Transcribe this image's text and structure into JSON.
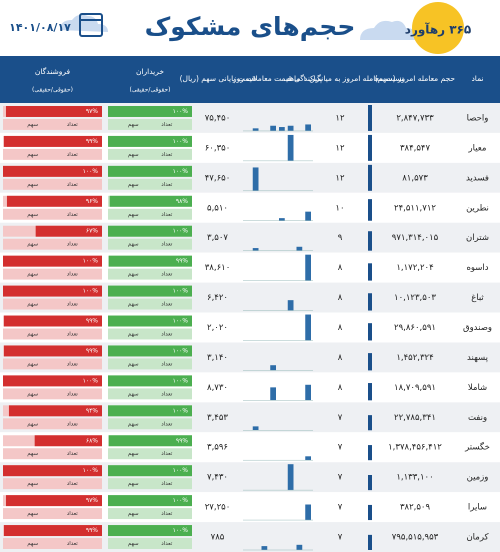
{
  "header": {
    "title": "حجم‌های مشکوک",
    "date": "۱۴۰۱/۰۸/۱۷",
    "logo": "۳۶۵ رهآورد"
  },
  "columns": [
    "نماد",
    "حجم معامله امروز (سهم)",
    "نسبت معامله امروز به میانگین ۱ ماهه",
    "پراکندگی قیمت معاملات روز",
    "قیمت پایانی سهم (ریال)",
    "خریداران",
    "فروشندگان"
  ],
  "sub_label": "(حقوقی/حقیقی)",
  "cell_labels": [
    "تعداد",
    "سهم"
  ],
  "rows": [
    {
      "symbol": "واحصا",
      "volume": "۲,۸۴۷,۷۳۳",
      "ratio": 12,
      "ratio_label": "۱۲",
      "price": "۷۵,۴۵۰",
      "dispersion": [
        0,
        10,
        0,
        20,
        15,
        20,
        0,
        25
      ],
      "buyers": 100,
      "buyers_label": "۱۰۰%",
      "sellers": 97,
      "sellers_label": "۹۷%"
    },
    {
      "symbol": "معیار",
      "volume": "۳۸۴,۵۴۷",
      "ratio": 12,
      "ratio_label": "۱۲",
      "price": "۶۰,۳۵۰",
      "dispersion": [
        0,
        0,
        0,
        0,
        0,
        100,
        0,
        0
      ],
      "buyers": 100,
      "buyers_label": "۱۰۰%",
      "sellers": 99,
      "sellers_label": "۹۹%"
    },
    {
      "symbol": "فسدید",
      "volume": "۸۱,۵۷۳",
      "ratio": 12,
      "ratio_label": "۱۲",
      "price": "۴۷,۶۵۰",
      "dispersion": [
        0,
        90,
        0,
        0,
        0,
        0,
        0,
        0
      ],
      "buyers": 100,
      "buyers_label": "۱۰۰%",
      "sellers": 100,
      "sellers_label": "۱۰۰%"
    },
    {
      "symbol": "نطرین",
      "volume": "۲۴,۵۱۱,۷۱۲",
      "ratio": 10,
      "ratio_label": "۱۰",
      "price": "۵,۵۱۰",
      "dispersion": [
        0,
        0,
        0,
        0,
        10,
        0,
        0,
        35
      ],
      "buyers": 98,
      "buyers_label": "۹۸%",
      "sellers": 96,
      "sellers_label": "۹۶%"
    },
    {
      "symbol": "شتران",
      "volume": "۹۷۱,۳۱۴,۰۱۵",
      "ratio": 9,
      "ratio_label": "۹",
      "price": "۳,۵۰۷",
      "dispersion": [
        0,
        10,
        0,
        0,
        0,
        0,
        15,
        0
      ],
      "buyers": 100,
      "buyers_label": "۱۰۰%",
      "sellers": 67,
      "sellers_label": "۶۷%"
    },
    {
      "symbol": "داسوه",
      "volume": "۱,۱۷۲,۲۰۴",
      "ratio": 8,
      "ratio_label": "۸",
      "price": "۳۸,۶۱۰",
      "dispersion": [
        0,
        0,
        0,
        0,
        0,
        0,
        0,
        100
      ],
      "buyers": 99,
      "buyers_label": "۹۹%",
      "sellers": 100,
      "sellers_label": "۱۰۰%"
    },
    {
      "symbol": "ثباغ",
      "volume": "۱۰,۱۲۳,۵۰۳",
      "ratio": 8,
      "ratio_label": "۸",
      "price": "۶,۴۲۰",
      "dispersion": [
        0,
        0,
        0,
        0,
        0,
        40,
        0,
        0
      ],
      "buyers": 100,
      "buyers_label": "۱۰۰%",
      "sellers": 100,
      "sellers_label": "۱۰۰%"
    },
    {
      "symbol": "وصندوق",
      "volume": "۲۹,۸۶۰,۵۹۱",
      "ratio": 8,
      "ratio_label": "۸",
      "price": "۲,۰۲۰",
      "dispersion": [
        0,
        0,
        0,
        0,
        0,
        0,
        0,
        100
      ],
      "buyers": 100,
      "buyers_label": "۱۰۰%",
      "sellers": 99,
      "sellers_label": "۹۹%"
    },
    {
      "symbol": "پسهند",
      "volume": "۱,۴۵۲,۳۲۴",
      "ratio": 8,
      "ratio_label": "۸",
      "price": "۳,۱۴۰",
      "dispersion": [
        0,
        0,
        0,
        20,
        0,
        0,
        0,
        0
      ],
      "buyers": 100,
      "buyers_label": "۱۰۰%",
      "sellers": 99,
      "sellers_label": "۹۹%"
    },
    {
      "symbol": "شاملا",
      "volume": "۱۸,۷۰۹,۵۹۱",
      "ratio": 8,
      "ratio_label": "۸",
      "price": "۸,۷۳۰",
      "dispersion": [
        0,
        0,
        0,
        50,
        0,
        0,
        0,
        60
      ],
      "buyers": 100,
      "buyers_label": "۱۰۰%",
      "sellers": 100,
      "sellers_label": "۱۰۰%"
    },
    {
      "symbol": "ونفت",
      "volume": "۲۲,۷۸۵,۳۴۱",
      "ratio": 7,
      "ratio_label": "۷",
      "price": "۳,۴۵۳",
      "dispersion": [
        0,
        15,
        0,
        0,
        0,
        0,
        0,
        0
      ],
      "buyers": 100,
      "buyers_label": "۱۰۰%",
      "sellers": 94,
      "sellers_label": "۹۴%"
    },
    {
      "symbol": "خگستر",
      "volume": "۱,۳۷۸,۴۵۶,۴۱۲",
      "ratio": 7,
      "ratio_label": "۷",
      "price": "۳,۵۹۶",
      "dispersion": [
        0,
        0,
        0,
        0,
        0,
        0,
        0,
        15
      ],
      "buyers": 99,
      "buyers_label": "۹۹%",
      "sellers": 68,
      "sellers_label": "۶۸%"
    },
    {
      "symbol": "وزمین",
      "volume": "۱,۱۳۳,۱۰۰",
      "ratio": 7,
      "ratio_label": "۷",
      "price": "۷,۴۳۰",
      "dispersion": [
        0,
        0,
        0,
        0,
        0,
        100,
        0,
        0
      ],
      "buyers": 100,
      "buyers_label": "۱۰۰%",
      "sellers": 100,
      "sellers_label": "۱۰۰%"
    },
    {
      "symbol": "سایرا",
      "volume": "۳۸۲,۵۰۹",
      "ratio": 7,
      "ratio_label": "۷",
      "price": "۲۷,۲۵۰",
      "dispersion": [
        0,
        0,
        0,
        0,
        0,
        0,
        0,
        60
      ],
      "buyers": 100,
      "buyers_label": "۱۰۰%",
      "sellers": 97,
      "sellers_label": "۹۷%"
    },
    {
      "symbol": "کرمان",
      "volume": "۷۹۵,۵۱۵,۹۵۳",
      "ratio": 7,
      "ratio_label": "۷",
      "price": "۷۸۵",
      "dispersion": [
        0,
        0,
        15,
        0,
        0,
        0,
        20,
        0
      ],
      "buyers": 100,
      "buyers_label": "۱۰۰%",
      "sellers": 99,
      "sellers_label": "۹۹%"
    }
  ]
}
